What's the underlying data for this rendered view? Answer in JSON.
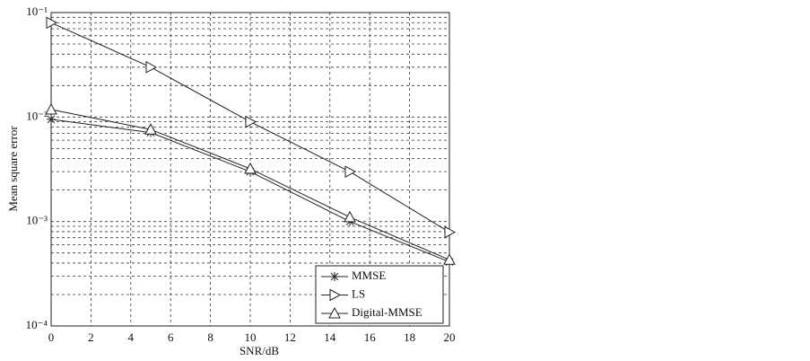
{
  "chart_data": {
    "type": "line",
    "x_label": "SNR/dB",
    "y_label": "Mean square error",
    "x": [
      0,
      5,
      10,
      15,
      20
    ],
    "series": [
      {
        "name": "MMSE",
        "color": "#222222",
        "marker": "star",
        "values": [
          0.0095,
          0.0071,
          0.003,
          0.001,
          0.00041
        ]
      },
      {
        "name": "LS",
        "color": "#222222",
        "marker": "triangle-right",
        "values": [
          0.08,
          0.03,
          0.009,
          0.003,
          0.00079
        ]
      },
      {
        "name": "Digital-MMSE",
        "color": "#222222",
        "marker": "triangle-up",
        "values": [
          0.0118,
          0.0076,
          0.0032,
          0.0011,
          0.00043
        ]
      }
    ],
    "xlim": [
      0,
      20
    ],
    "xticks": [
      0,
      2,
      4,
      6,
      8,
      10,
      12,
      14,
      16,
      18,
      20
    ],
    "ylim": [
      0.0001,
      0.1
    ],
    "log_y": true,
    "yticks": [
      {
        "value": 0.0001,
        "label": "10⁻⁴"
      },
      {
        "value": 0.001,
        "label": "10⁻³"
      },
      {
        "value": 0.01,
        "label": "10⁻²"
      },
      {
        "value": 0.1,
        "label": "10⁻¹"
      }
    ],
    "yminorticks": [
      0.0002,
      0.0003,
      0.0004,
      0.0005,
      0.0006,
      0.0007,
      0.0008,
      0.0009,
      0.002,
      0.003,
      0.004,
      0.005,
      0.006,
      0.007,
      0.008,
      0.009,
      0.02,
      0.03,
      0.04,
      0.05,
      0.06,
      0.07,
      0.08,
      0.09
    ],
    "grid": true,
    "legend": "lower right"
  }
}
